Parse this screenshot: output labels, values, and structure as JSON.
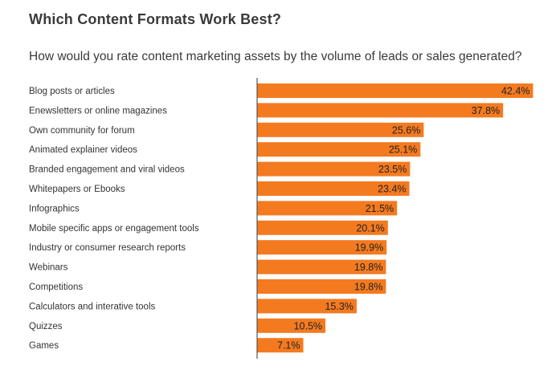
{
  "colors": {
    "bar": "#F47A20",
    "axis": "#555555",
    "text": "#333333"
  },
  "chart_data": {
    "type": "bar",
    "orientation": "horizontal",
    "title": "Which Content Formats Work Best?",
    "subtitle": "How would you rate content marketing assets by the volume of leads or sales generated?",
    "xlabel": "",
    "ylabel": "",
    "grid": false,
    "xlim": [
      0,
      45
    ],
    "categories": [
      "Blog posts or articles",
      "Enewsletters or online magazines",
      "Own community for forum",
      "Animated explainer videos",
      "Branded engagement and viral videos",
      "Whitepapers or Ebooks",
      "Infographics",
      "Mobile specific apps or engagement tools",
      "Industry or consumer research reports",
      "Webinars",
      "Competitions",
      "Calculators and interative tools",
      "Quizzes",
      "Games"
    ],
    "values": [
      42.4,
      37.8,
      25.6,
      25.1,
      23.5,
      23.4,
      21.5,
      20.1,
      19.9,
      19.8,
      19.8,
      15.3,
      10.5,
      7.1
    ],
    "data_labels": [
      "42.4%",
      "37.8%",
      "25.6%",
      "25.1%",
      "23.5%",
      "23.4%",
      "21.5%",
      "20.1%",
      "19.9%",
      "19.8%",
      "19.8%",
      "15.3%",
      "10.5%",
      "7.1%"
    ]
  }
}
